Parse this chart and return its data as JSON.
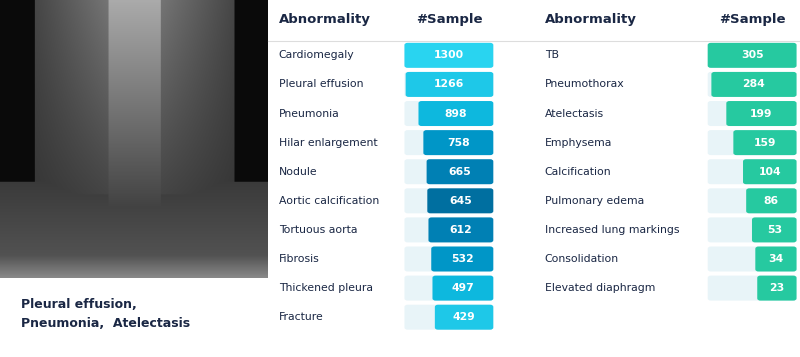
{
  "xray_caption": "Pleural effusion,\nPneumonia,  Atelectasis",
  "caption_bg": "#fdeea0",
  "xray_bg": "#000000",
  "table_bg": "#ffffff",
  "header_line_color": "#cccccc",
  "left_labels": [
    "Cardiomegaly",
    "Pleural effusion",
    "Pneumonia",
    "Hilar enlargement",
    "Nodule",
    "Aortic calcification",
    "Tortuous aorta",
    "Fibrosis",
    "Thickened pleura",
    "Fracture"
  ],
  "left_values": [
    1300,
    1266,
    898,
    758,
    665,
    645,
    612,
    532,
    497,
    429
  ],
  "right_labels": [
    "TB",
    "Pneumothorax",
    "Atelectasis",
    "Emphysema",
    "Calcification",
    "Pulmonary edema",
    "Increased lung markings",
    "Consolidation",
    "Elevated diaphragm"
  ],
  "right_values": [
    305,
    284,
    199,
    159,
    104,
    86,
    53,
    34,
    23
  ],
  "blue_pills": [
    "#29d4f0",
    "#1ec8e8",
    "#0db8de",
    "#0096c7",
    "#0080b4",
    "#006fa0",
    "#0080b4",
    "#0096c7",
    "#0db8de",
    "#1ec8e8"
  ],
  "green_color": "#26c9a0",
  "pill_bg_color": "#e8f4f8",
  "text_dark": "#1a2744",
  "text_white": "#ffffff",
  "col1_header": "Abnormality",
  "col2_header": "#Sample",
  "col3_header": "Abnormality",
  "col4_header": "#Sample"
}
